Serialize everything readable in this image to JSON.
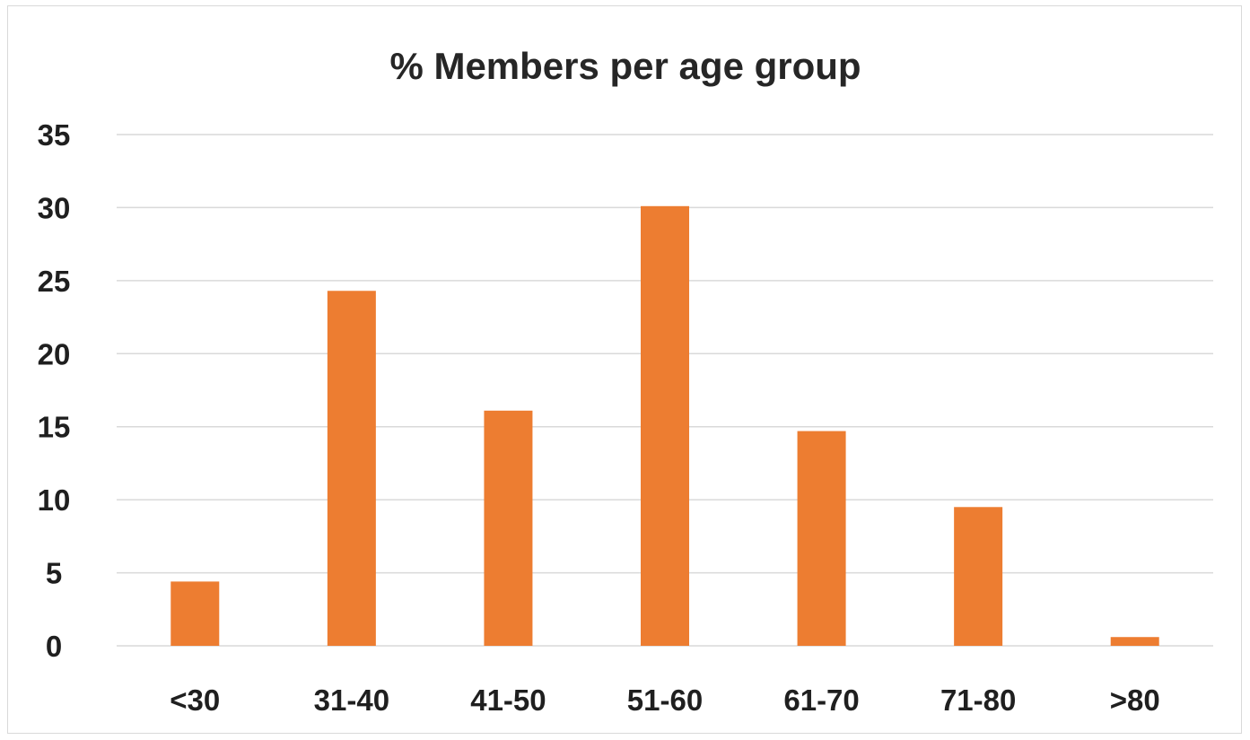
{
  "chart_data": {
    "type": "bar",
    "title": "% Members per age group",
    "categories": [
      "<30",
      "31-40",
      "41-50",
      "51-60",
      "61-70",
      "71-80",
      ">80"
    ],
    "values": [
      4.4,
      24.3,
      16.1,
      30.1,
      14.7,
      9.5,
      0.6
    ],
    "ylim": [
      0,
      35
    ],
    "yticks": [
      "0",
      "5",
      "10",
      "15",
      "20",
      "25",
      "30",
      "35"
    ],
    "grid": true,
    "bar_color": "#ED7D31",
    "xlabel": "",
    "ylabel": ""
  }
}
